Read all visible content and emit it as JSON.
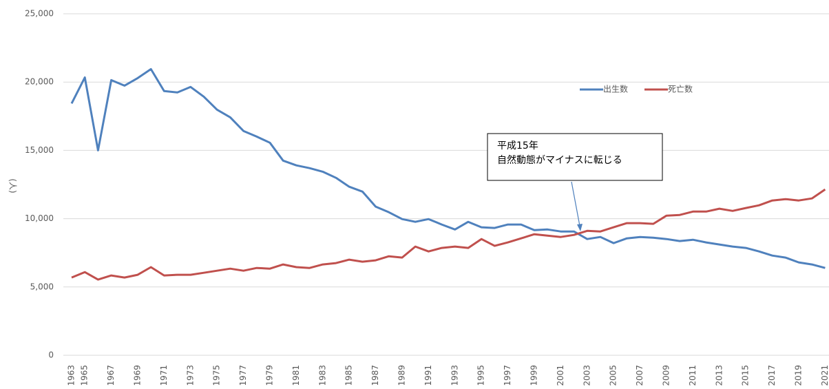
{
  "chart_data": {
    "type": "line",
    "y_label": "(人)",
    "annotation": [
      "平成15年",
      "自然動態がマイナスに転じる"
    ],
    "categories": [
      "1963",
      "1965",
      null,
      "1967",
      null,
      "1969",
      null,
      "1971",
      null,
      "1973",
      null,
      "1975",
      null,
      "1977",
      null,
      "1979",
      null,
      "1981",
      null,
      "1983",
      null,
      "1985",
      null,
      "1987",
      null,
      "1989",
      null,
      "1991",
      null,
      "1993",
      null,
      "1995",
      null,
      "1997",
      null,
      "1999",
      null,
      "2001",
      null,
      "2003",
      null,
      "2005",
      null,
      "2007",
      null,
      "2009",
      null,
      "2011",
      null,
      "2013",
      null,
      "2015",
      null,
      "2017",
      null,
      "2019",
      null,
      "2021"
    ],
    "series": [
      {
        "name": "出生数",
        "color": "#4f81bd",
        "values": [
          18430,
          20340,
          15000,
          20140,
          19740,
          20290,
          20950,
          19340,
          19240,
          19640,
          18930,
          17980,
          17420,
          16420,
          16010,
          15560,
          14250,
          13900,
          13700,
          13440,
          12990,
          12340,
          11980,
          10880,
          10470,
          9970,
          9770,
          9970,
          9570,
          9210,
          9770,
          9370,
          9320,
          9570,
          9570,
          9160,
          9210,
          9060,
          9060,
          8510,
          8660,
          8210,
          8560,
          8660,
          8610,
          8510,
          8360,
          8460,
          8260,
          8110,
          7960,
          7860,
          7600,
          7300,
          7150,
          6800,
          6650,
          6390
        ]
      },
      {
        "name": "死亡数",
        "color": "#c0504d",
        "values": [
          5690,
          6090,
          5540,
          5840,
          5690,
          5890,
          6450,
          5840,
          5890,
          5890,
          6040,
          6190,
          6340,
          6190,
          6390,
          6340,
          6650,
          6450,
          6390,
          6650,
          6750,
          7000,
          6850,
          6950,
          7250,
          7150,
          7960,
          7600,
          7860,
          7960,
          7860,
          8510,
          8010,
          8260,
          8560,
          8860,
          8760,
          8660,
          8810,
          9110,
          9060,
          9370,
          9670,
          9670,
          9620,
          10220,
          10270,
          10520,
          10520,
          10730,
          10570,
          10780,
          10980,
          11330,
          11430,
          11330,
          11480,
          12140
        ]
      }
    ],
    "ylim": [
      0,
      25000
    ],
    "yticks": [
      0,
      {
        "value": 5000,
        "label": "5,000"
      },
      {
        "value": 10000,
        "label": "10,000"
      },
      {
        "value": 15000,
        "label": "15,000"
      },
      {
        "value": 20000,
        "label": "20,000"
      },
      {
        "value": 25000,
        "label": "25,000"
      }
    ],
    "grid": true
  }
}
